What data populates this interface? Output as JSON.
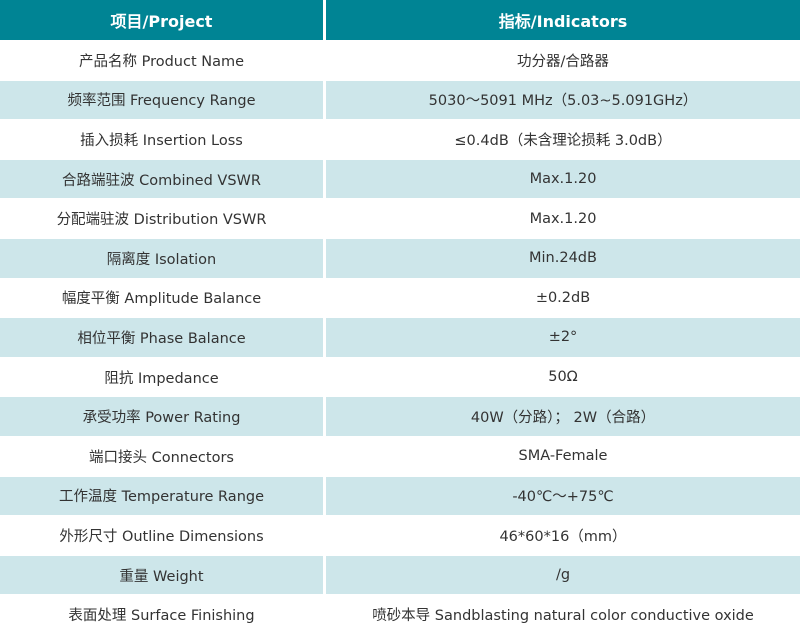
{
  "colors": {
    "header_bg": "#008494",
    "alt_row_bg": "#cde6ea"
  },
  "header": {
    "project": "项目/Project",
    "indicators": "指标/Indicators"
  },
  "rows": [
    {
      "project": "产品名称 Product Name",
      "value": "功分器/合路器"
    },
    {
      "project": "频率范围 Frequency Range",
      "value": "5030～5091 MHz（5.03~5.091GHz）"
    },
    {
      "project": "插入损耗 Insertion Loss",
      "value": "≤0.4dB（未含理论损耗 3.0dB）"
    },
    {
      "project": "合路端驻波 Combined VSWR",
      "value": "Max.1.20"
    },
    {
      "project": "分配端驻波 Distribution VSWR",
      "value": "Max.1.20"
    },
    {
      "project": "隔离度 Isolation",
      "value": "Min.24dB"
    },
    {
      "project": "幅度平衡 Amplitude Balance",
      "value": "±0.2dB"
    },
    {
      "project": "相位平衡 Phase Balance",
      "value": "±2°"
    },
    {
      "project": "阻抗 Impedance",
      "value": "50Ω"
    },
    {
      "project": "承受功率 Power Rating",
      "value": "40W（分路）； 2W（合路）"
    },
    {
      "project": "端口接头 Connectors",
      "value": "SMA-Female"
    },
    {
      "project": "工作温度 Temperature Range",
      "value": "-40℃～+75℃"
    },
    {
      "project": "外形尺寸 Outline Dimensions",
      "value": "46*60*16（mm）"
    },
    {
      "project": "重量 Weight",
      "value": "/g"
    },
    {
      "project": "表面处理 Surface Finishing",
      "value": "喷砂本导 Sandblasting natural color conductive oxide"
    }
  ]
}
